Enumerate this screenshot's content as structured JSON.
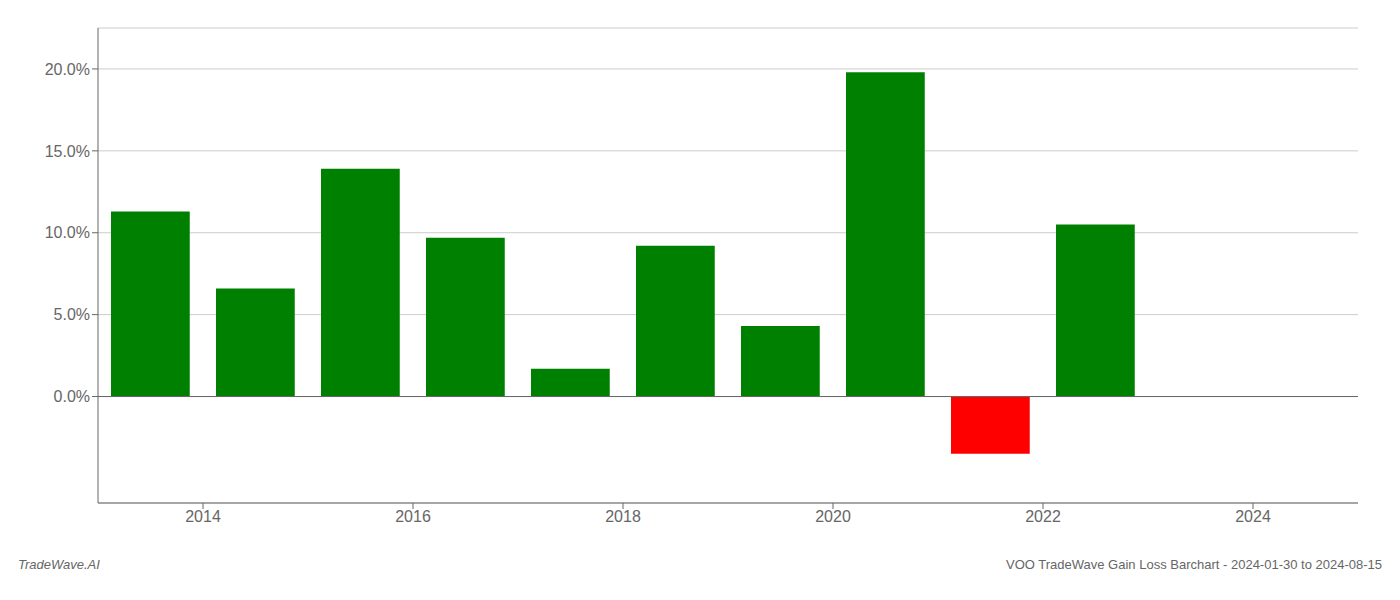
{
  "chart_data": {
    "type": "bar",
    "x": [
      2013.5,
      2014.5,
      2015.5,
      2016.5,
      2017.5,
      2018.5,
      2019.5,
      2020.5,
      2021.5,
      2022.5
    ],
    "values": [
      0.113,
      0.066,
      0.139,
      0.097,
      0.017,
      0.092,
      0.043,
      0.198,
      -0.035,
      0.105
    ],
    "colors": [
      "#008000",
      "#008000",
      "#008000",
      "#008000",
      "#008000",
      "#008000",
      "#008000",
      "#008000",
      "#ff0000",
      "#008000"
    ],
    "xlim": [
      2013.0,
      2025.0
    ],
    "xticks": [
      2014,
      2016,
      2018,
      2020,
      2022,
      2024
    ],
    "ylim": [
      -0.065,
      0.225
    ],
    "yticks": [
      {
        "value": 0.0,
        "label": "0.0%"
      },
      {
        "value": 0.05,
        "label": "5.0%"
      },
      {
        "value": 0.1,
        "label": "10.0%"
      },
      {
        "value": 0.15,
        "label": "15.0%"
      },
      {
        "value": 0.2,
        "label": "20.0%"
      }
    ],
    "grid": true,
    "annotations": [
      "TradeWave.AI",
      "VOO TradeWave Gain Loss Barchart - 2024-01-30 to 2024-08-15"
    ]
  }
}
